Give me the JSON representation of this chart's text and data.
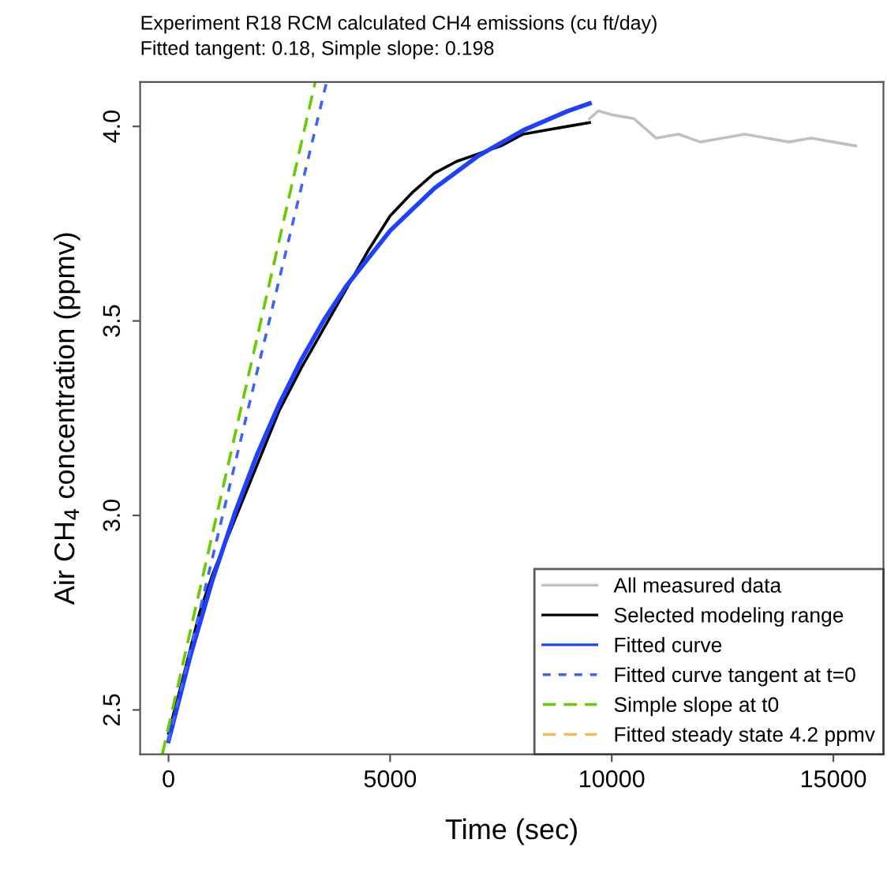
{
  "chart_data": {
    "type": "line",
    "title": "Experiment R18 RCM calculated CH4 emissions (cu ft/day)",
    "subtitle": "Fitted tangent: 0.18, Simple slope: 0.198",
    "xlabel": "Time (sec)",
    "ylabel": "Air CH$_{4}$ concentration (ppmv)",
    "xlim": [
      -640,
      16130
    ],
    "ylim": [
      2.386,
      4.114
    ],
    "xticks": [
      0,
      5000,
      10000,
      15000
    ],
    "yticks": [
      2.5,
      {
        "value": 3,
        "label": "3.0"
      },
      3.5,
      {
        "value": 4,
        "label": "4.0"
      }
    ],
    "grid": false,
    "legend": "bottom right",
    "marker": "none",
    "series": [
      {
        "name": "All measured data",
        "color": "#c0c0c0",
        "line_style": "solid",
        "x": [
          9500,
          9700,
          10000,
          10500,
          11000,
          11500,
          12000,
          12500,
          13000,
          13500,
          14000,
          14500,
          15000,
          15500
        ],
        "values": [
          4.02,
          4.04,
          4.03,
          4.02,
          3.97,
          3.98,
          3.96,
          3.97,
          3.98,
          3.97,
          3.96,
          3.97,
          3.96,
          3.95
        ]
      },
      {
        "name": "Selected modeling range",
        "color": "#000000",
        "line_style": "solid",
        "x": [
          0,
          300,
          700,
          1000,
          1500,
          2000,
          2500,
          3000,
          3500,
          4000,
          4500,
          5000,
          5500,
          6000,
          6500,
          7000,
          7500,
          8000,
          8500,
          9000,
          9500
        ],
        "values": [
          2.44,
          2.57,
          2.75,
          2.85,
          2.99,
          3.13,
          3.27,
          3.38,
          3.48,
          3.58,
          3.68,
          3.77,
          3.83,
          3.88,
          3.91,
          3.93,
          3.95,
          3.98,
          3.99,
          4.0,
          4.01
        ]
      },
      {
        "name": "Fitted curve",
        "color": "#2040ff",
        "line_style": "solid",
        "x": [
          0,
          500,
          1000,
          1500,
          2000,
          2500,
          3000,
          3500,
          4000,
          5000,
          6000,
          7000,
          8000,
          9000,
          9500
        ],
        "values": [
          2.42,
          2.642,
          2.837,
          3.007,
          3.157,
          3.287,
          3.401,
          3.501,
          3.588,
          3.732,
          3.841,
          3.925,
          3.99,
          4.039,
          4.059
        ]
      },
      {
        "name": "Fitted curve tangent at t=0",
        "color": "#4060ff",
        "line_style": "dotted",
        "x": [
          0,
          3566
        ],
        "values": [
          2.42,
          4.114
        ]
      },
      {
        "name": "Simple slope at t0",
        "color": "#66cc00",
        "line_style": "dashed",
        "x": [
          -140,
          3310
        ],
        "values": [
          2.386,
          4.114
        ]
      },
      {
        "name": "Fitted steady state 4.2 ppmv",
        "color": "#ffb84d",
        "line_style": "dashed"
      }
    ]
  }
}
